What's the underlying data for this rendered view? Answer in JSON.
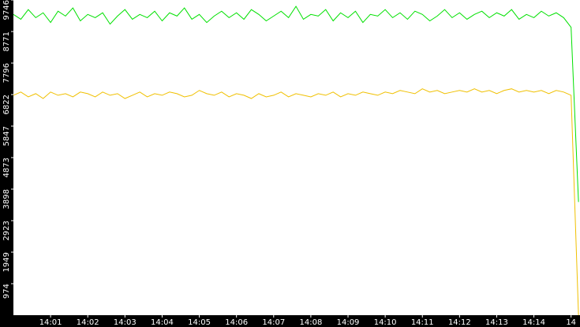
{
  "chart_data": {
    "type": "line",
    "x": [
      840,
      840.2,
      840.4,
      840.6,
      840.8,
      841,
      841.2,
      841.4,
      841.6,
      841.8,
      842,
      842.2,
      842.4,
      842.6,
      842.8,
      843,
      843.2,
      843.4,
      843.6,
      843.8,
      844,
      844.2,
      844.4,
      844.6,
      844.8,
      845,
      845.2,
      845.4,
      845.6,
      845.8,
      846,
      846.2,
      846.4,
      846.6,
      846.8,
      847,
      847.2,
      847.4,
      847.6,
      847.8,
      848,
      848.2,
      848.4,
      848.6,
      848.8,
      849,
      849.2,
      849.4,
      849.6,
      849.8,
      850,
      850.2,
      850.4,
      850.6,
      850.8,
      851,
      851.2,
      851.4,
      851.6,
      851.8,
      852,
      852.2,
      852.4,
      852.6,
      852.8,
      853,
      853.2,
      853.4,
      853.6,
      853.8,
      854,
      854.2,
      854.4,
      854.6,
      854.8,
      855,
      855.2
    ],
    "series": [
      {
        "color": "#00e000",
        "values": [
          9300,
          9150,
          9450,
          9200,
          9350,
          9050,
          9400,
          9250,
          9500,
          9100,
          9300,
          9200,
          9350,
          9000,
          9250,
          9450,
          9150,
          9300,
          9200,
          9400,
          9100,
          9350,
          9250,
          9500,
          9150,
          9300,
          9050,
          9250,
          9400,
          9200,
          9350,
          9150,
          9450,
          9300,
          9100,
          9250,
          9400,
          9200,
          9550,
          9150,
          9300,
          9250,
          9450,
          9100,
          9350,
          9200,
          9400,
          9050,
          9300,
          9250,
          9450,
          9200,
          9350,
          9150,
          9400,
          9300,
          9100,
          9250,
          9450,
          9200,
          9350,
          9150,
          9300,
          9400,
          9200,
          9350,
          9250,
          9450,
          9150,
          9300,
          9200,
          9400,
          9250,
          9350,
          9200,
          8900,
          3500
        ]
      },
      {
        "color": "#f0c000",
        "values": [
          6800,
          6900,
          6750,
          6850,
          6700,
          6900,
          6800,
          6850,
          6750,
          6900,
          6850,
          6750,
          6900,
          6800,
          6850,
          6700,
          6800,
          6900,
          6750,
          6850,
          6800,
          6900,
          6850,
          6750,
          6800,
          6950,
          6850,
          6800,
          6900,
          6750,
          6850,
          6800,
          6700,
          6850,
          6750,
          6800,
          6900,
          6750,
          6850,
          6800,
          6750,
          6850,
          6800,
          6900,
          6750,
          6850,
          6800,
          6900,
          6850,
          6800,
          6900,
          6850,
          6950,
          6900,
          6850,
          7000,
          6900,
          6950,
          6850,
          6900,
          6950,
          6900,
          7000,
          6900,
          6950,
          6850,
          6950,
          7000,
          6900,
          6950,
          6900,
          6950,
          6850,
          6950,
          6900,
          6800,
          0
        ]
      }
    ],
    "xlim": [
      840,
      855.24
    ],
    "xticks": [
      {
        "value": 841,
        "label": "14:01"
      },
      {
        "value": 842,
        "label": "14:02"
      },
      {
        "value": 843,
        "label": "14:03"
      },
      {
        "value": 844,
        "label": "14:04"
      },
      {
        "value": 845,
        "label": "14:05"
      },
      {
        "value": 846,
        "label": "14:06"
      },
      {
        "value": 847,
        "label": "14:07"
      },
      {
        "value": 848,
        "label": "14:08"
      },
      {
        "value": 849,
        "label": "14:09"
      },
      {
        "value": 850,
        "label": "14:10"
      },
      {
        "value": 851,
        "label": "14:11"
      },
      {
        "value": 852,
        "label": "14:12"
      },
      {
        "value": 853,
        "label": "14:13"
      },
      {
        "value": 854,
        "label": "14:14"
      },
      {
        "value": 855,
        "label": "14"
      }
    ],
    "ylim": [
      0,
      9746
    ],
    "yticks": [
      974,
      1949,
      2923,
      3898,
      4873,
      5847,
      6822,
      7796,
      8771,
      9746
    ]
  }
}
